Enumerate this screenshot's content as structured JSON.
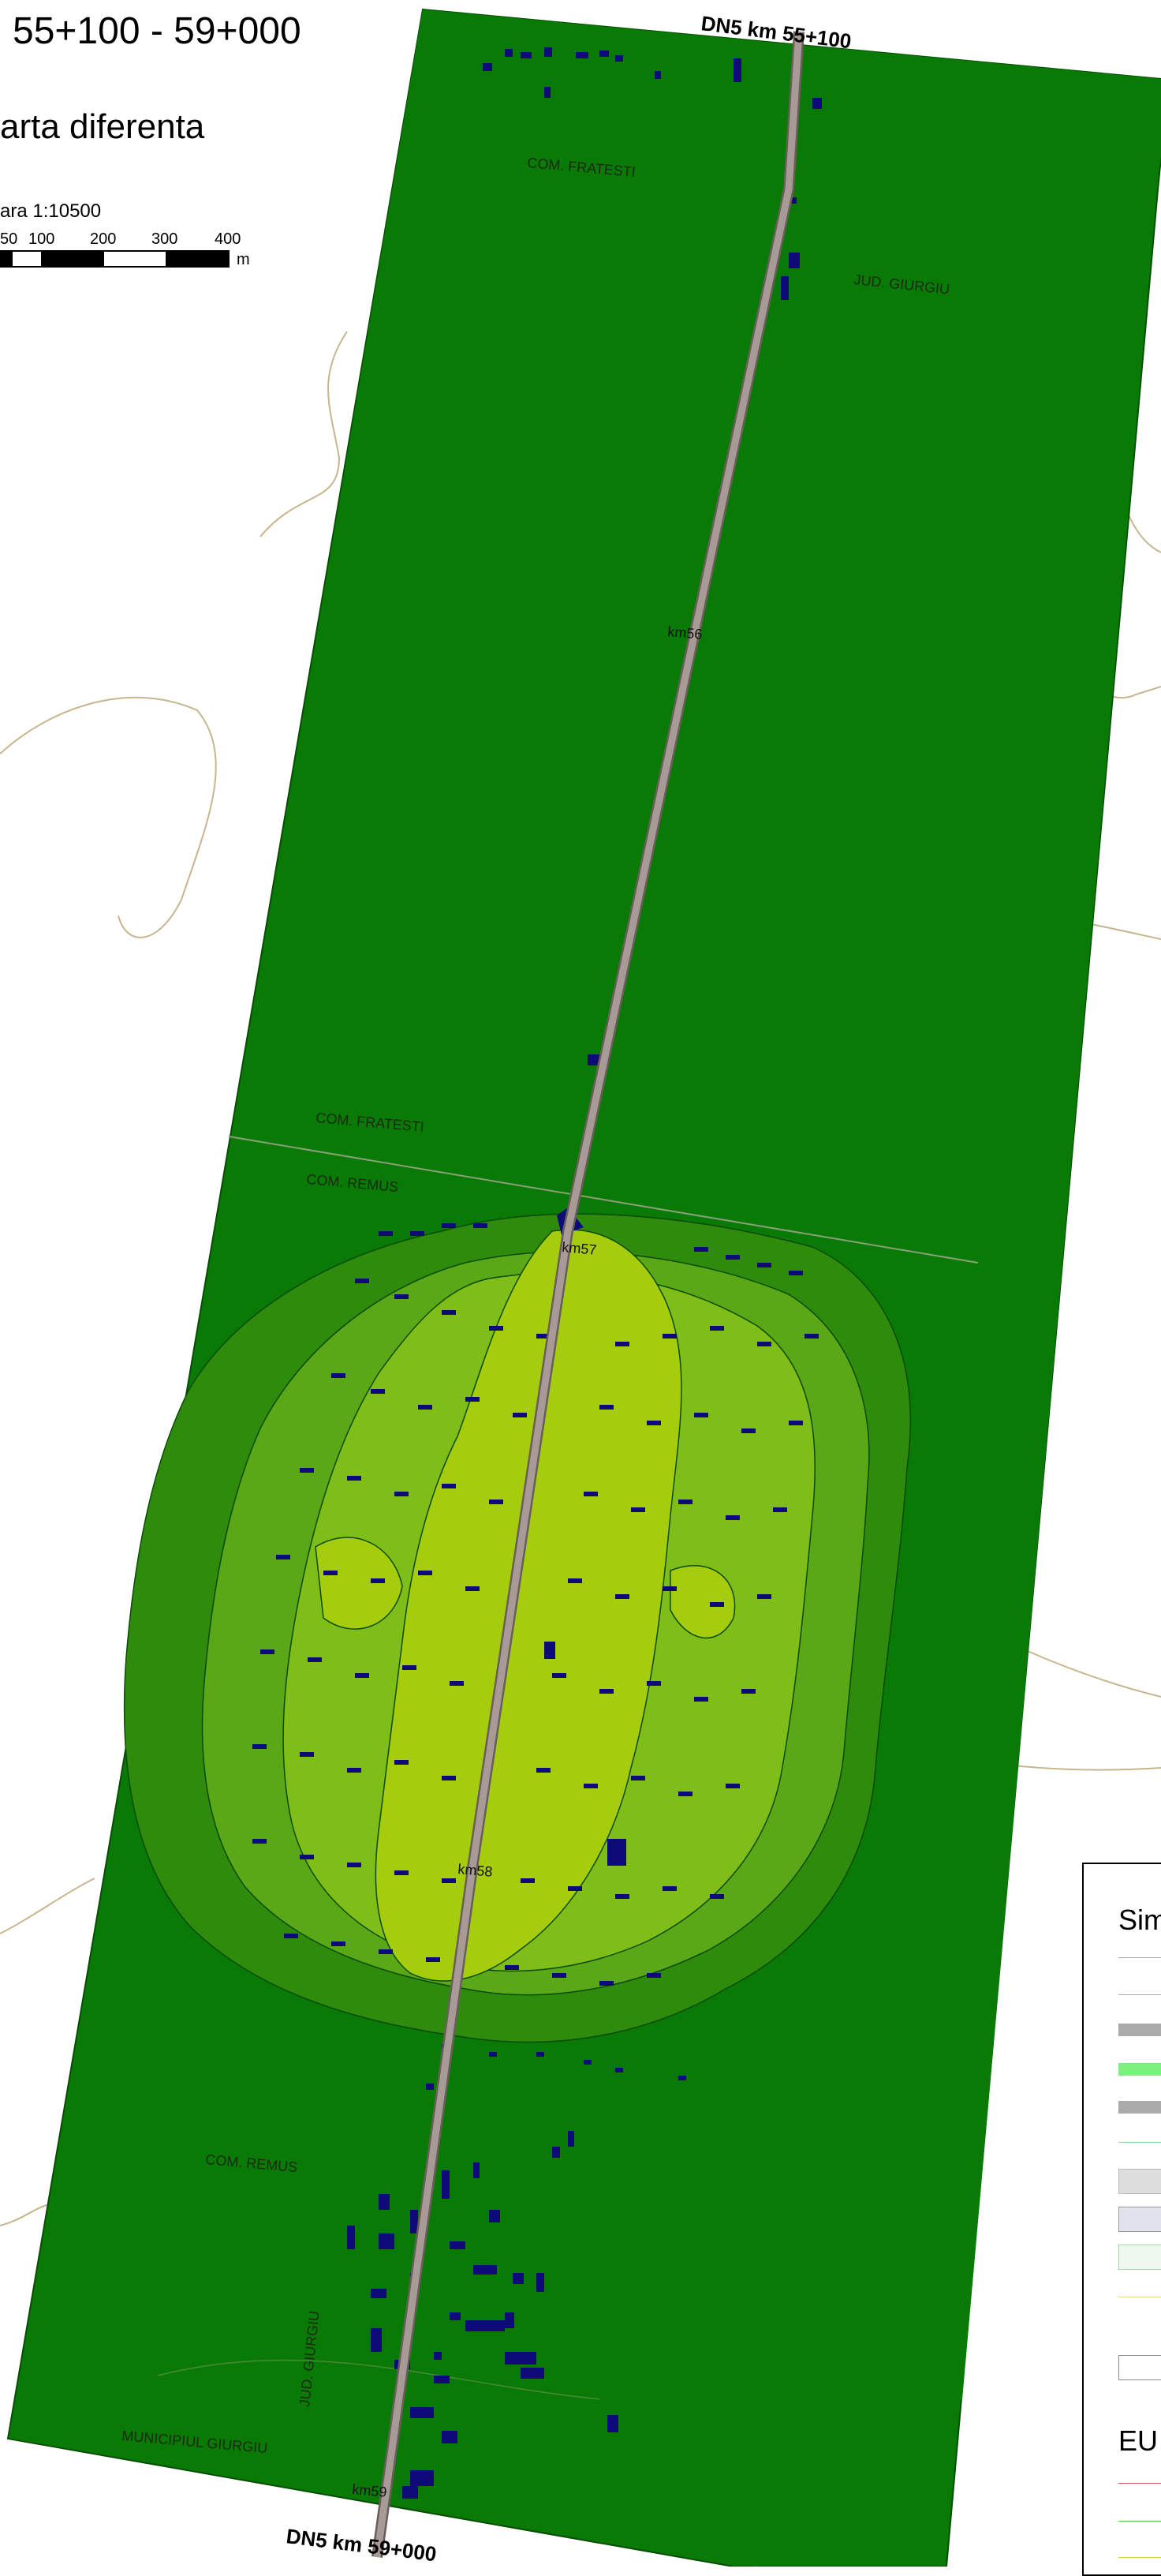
{
  "header": {
    "title": "55+100 - 59+000",
    "subtitle": "arta diferenta",
    "scale_text": "ara 1:10500",
    "scale_ticks": [
      "50",
      "100",
      "200",
      "300",
      "400"
    ],
    "scale_unit": "m"
  },
  "map": {
    "road_start_label": "DN5 km 55+100",
    "road_end_label": "DN5 km 59+000",
    "km_markers": [
      "km56",
      "km57",
      "km58",
      "km59"
    ],
    "place_labels": {
      "com_fratesti_top": "COM. FRATESTI",
      "jud_giurgiu_top": "JUD. GIURGIU",
      "com_fratesti_mid": "COM. FRATESTI",
      "com_remus_mid": "COM. REMUS",
      "com_remus_bottom": "COM. REMUS",
      "jud_giurgiu_bottom": "JUD. GIURGIU",
      "municipiul_giurgiu": "MUNICIPIUL GIURGIU"
    },
    "colors": {
      "zone_outer": "#0a7a06",
      "zone_2": "#2e8b0c",
      "zone_3": "#5aa818",
      "zone_4": "#7fbe18",
      "zone_inner": "#a6cc0e",
      "buildings": "#0e0a7a",
      "road": "#a89a96",
      "boundary": "#c8b58e"
    }
  },
  "legend": {
    "title": "Sim",
    "section_label": "EU"
  }
}
